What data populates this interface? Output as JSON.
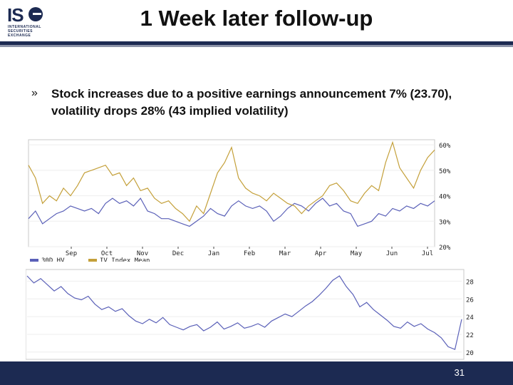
{
  "slide": {
    "title": "1 Week later follow-up",
    "bullet": "Stock increases due to a positive earnings announcement 7% (23.70), volatility drops 28% (43 implied volatility)",
    "bullet_marker": "»",
    "slide_number": "31",
    "logo": {
      "main": "IS",
      "sub_lines": [
        "INTERNATIONAL",
        "SECURITIES",
        "EXCHANGE"
      ]
    }
  },
  "colors": {
    "hv": "#5a60b8",
    "iv": "#c4a03a",
    "navy": "#1c2a52"
  },
  "chart_data": [
    {
      "type": "line",
      "x_labels": [
        "Sep",
        "Oct",
        "Nov",
        "Dec",
        "Jan",
        "Feb",
        "Mar",
        "Apr",
        "May",
        "Jun",
        "Jul"
      ],
      "y_ticks": [
        "20%",
        "30%",
        "40%",
        "50%",
        "60%"
      ],
      "ylim": [
        20,
        62
      ],
      "legend": [
        "30D HV",
        "IV Index Mean"
      ],
      "series": [
        {
          "name": "30D HV",
          "values": [
            31,
            34,
            29,
            31,
            33,
            34,
            36,
            35,
            34,
            35,
            33,
            37,
            39,
            37,
            38,
            36,
            39,
            34,
            33,
            31,
            31,
            30,
            29,
            28,
            30,
            32,
            35,
            33,
            32,
            36,
            38,
            36,
            35,
            36,
            34,
            30,
            32,
            35,
            37,
            36,
            34,
            37,
            39,
            36,
            37,
            34,
            33,
            28,
            29,
            30,
            33,
            32,
            35,
            34,
            36,
            35,
            37,
            36,
            38
          ]
        },
        {
          "name": "IV Index Mean",
          "values": [
            52,
            47,
            37,
            40,
            38,
            43,
            40,
            44,
            49,
            50,
            51,
            52,
            48,
            49,
            44,
            47,
            42,
            43,
            39,
            37,
            38,
            35,
            33,
            30,
            36,
            33,
            41,
            49,
            53,
            59,
            47,
            43,
            41,
            40,
            38,
            41,
            39,
            37,
            36,
            33,
            36,
            38,
            40,
            44,
            45,
            42,
            38,
            37,
            41,
            44,
            42,
            53,
            61,
            51,
            47,
            43,
            50,
            55,
            58
          ]
        }
      ]
    },
    {
      "type": "line",
      "y_ticks": [
        "20",
        "22",
        "24",
        "26",
        "28"
      ],
      "ylim": [
        19.5,
        29
      ],
      "series": [
        {
          "name": "",
          "values": [
            28.6,
            27.8,
            28.3,
            27.6,
            26.9,
            27.4,
            26.6,
            26.1,
            25.9,
            26.3,
            25.4,
            24.8,
            25.1,
            24.6,
            24.9,
            24.1,
            23.5,
            23.2,
            23.7,
            23.3,
            23.9,
            23.1,
            22.8,
            22.5,
            22.9,
            23.1,
            22.4,
            22.8,
            23.4,
            22.6,
            22.9,
            23.3,
            22.7,
            22.9,
            23.2,
            22.8,
            23.5,
            23.9,
            24.3,
            24.0,
            24.6,
            25.2,
            25.7,
            26.4,
            27.2,
            28.1,
            28.6,
            27.4,
            26.5,
            25.1,
            25.6,
            24.8,
            24.2,
            23.6,
            22.9,
            22.7,
            23.4,
            22.9,
            23.2,
            22.6,
            22.2,
            21.6,
            20.6,
            20.3,
            23.7
          ]
        }
      ]
    }
  ]
}
